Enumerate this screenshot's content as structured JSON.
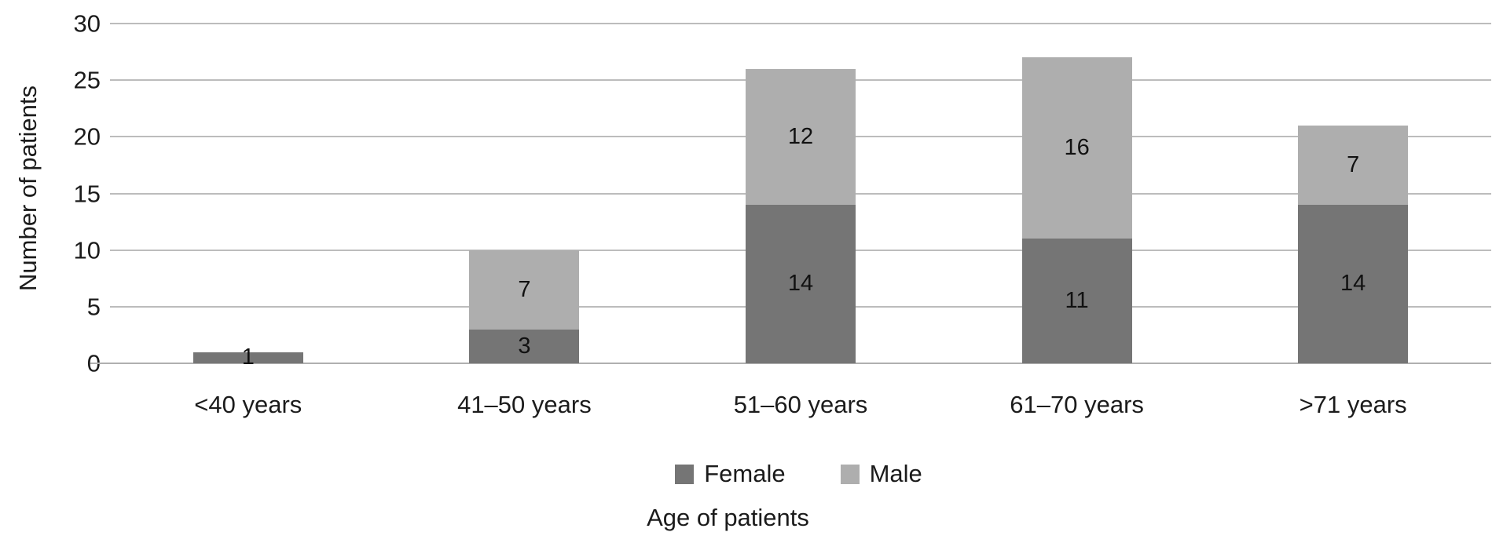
{
  "chart_data": {
    "type": "bar",
    "stacked": true,
    "title": "",
    "xlabel": "Age of patients",
    "ylabel": "Number of patients",
    "categories": [
      "<40 years",
      "41–50 years",
      "51–60 years",
      "61–70 years",
      ">71 years"
    ],
    "series": [
      {
        "name": "Female",
        "color": "#757575",
        "values": [
          1,
          3,
          14,
          11,
          14
        ]
      },
      {
        "name": "Male",
        "color": "#aeaeae",
        "values": [
          0,
          7,
          12,
          16,
          7
        ]
      }
    ],
    "yticks": [
      0,
      5,
      10,
      15,
      20,
      25,
      30
    ],
    "ylim": [
      0,
      30
    ],
    "grid": true,
    "legend_position": "bottom",
    "data_labels_visible": true
  },
  "colors": {
    "female": "#757575",
    "male": "#aeaeae",
    "gridline": "#bcbcbc",
    "axis_line": "#b0b0b0",
    "text": "#1b1b1b",
    "background": "#ffffff"
  }
}
